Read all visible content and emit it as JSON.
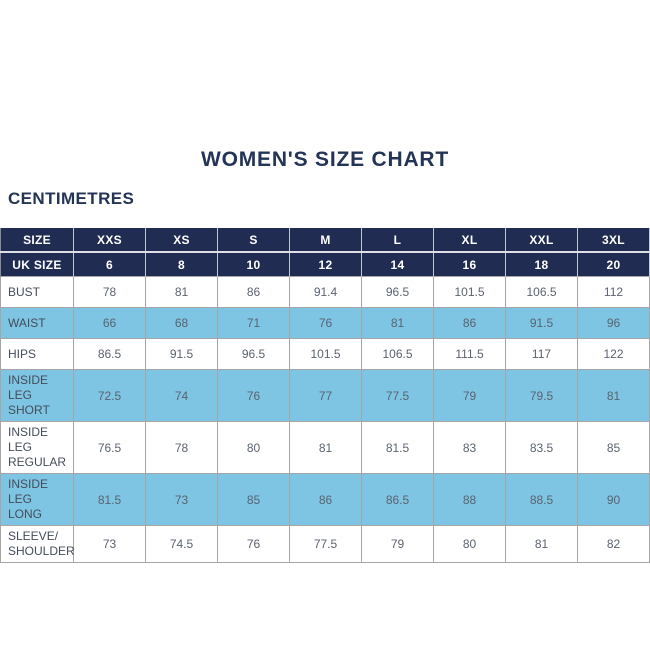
{
  "title": "WOMEN'S SIZE CHART",
  "subtitle": "CENTIMETRES",
  "chart_data": {
    "type": "table",
    "columns": [
      "SIZE",
      "XXS",
      "XS",
      "S",
      "M",
      "L",
      "XL",
      "XXL",
      "3XL"
    ],
    "uk_size_row": {
      "label": "UK SIZE",
      "values": [
        "6",
        "8",
        "10",
        "12",
        "14",
        "16",
        "18",
        "20"
      ]
    },
    "rows": [
      {
        "label": "BUST",
        "values": [
          "78",
          "81",
          "86",
          "91.4",
          "96.5",
          "101.5",
          "106.5",
          "112"
        ],
        "shaded": false
      },
      {
        "label": "WAIST",
        "values": [
          "66",
          "68",
          "71",
          "76",
          "81",
          "86",
          "91.5",
          "96"
        ],
        "shaded": true
      },
      {
        "label": "HIPS",
        "values": [
          "86.5",
          "91.5",
          "96.5",
          "101.5",
          "106.5",
          "111.5",
          "117",
          "122"
        ],
        "shaded": false
      },
      {
        "label": "INSIDE LEG\nSHORT",
        "values": [
          "72.5",
          "74",
          "76",
          "77",
          "77.5",
          "79",
          "79.5",
          "81"
        ],
        "shaded": true
      },
      {
        "label": "INSIDE LEG\nREGULAR",
        "values": [
          "76.5",
          "78",
          "80",
          "81",
          "81.5",
          "83",
          "83.5",
          "85"
        ],
        "shaded": false
      },
      {
        "label": "INSIDE LEG\nLONG",
        "values": [
          "81.5",
          "73",
          "85",
          "86",
          "86.5",
          "88",
          "88.5",
          "90"
        ],
        "shaded": true
      },
      {
        "label": "SLEEVE/\nSHOULDER",
        "values": [
          "73",
          "74.5",
          "76",
          "77.5",
          "79",
          "80",
          "81",
          "82"
        ],
        "shaded": false
      }
    ]
  },
  "colors": {
    "navy": "#212c52",
    "light_blue": "#7ec4e3",
    "title_text": "#243457",
    "cell_text": "#5b6370",
    "border": "#a6a6a6"
  }
}
